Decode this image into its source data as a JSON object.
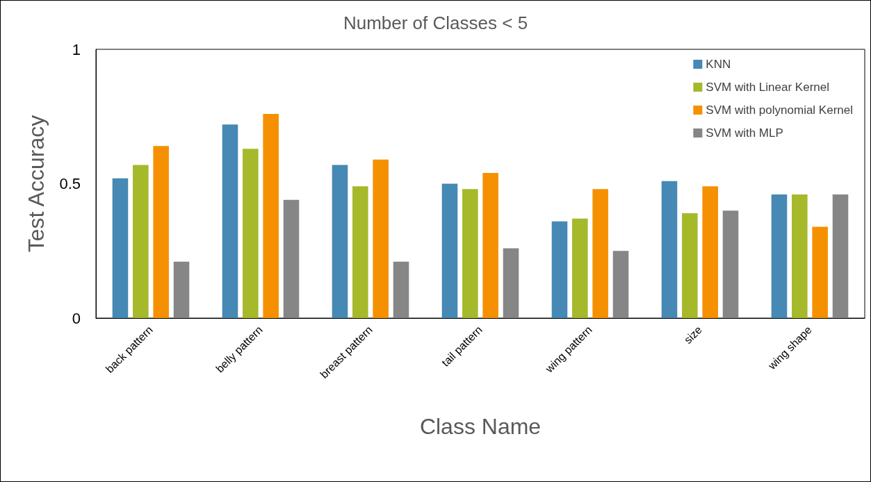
{
  "chart_data": {
    "type": "bar",
    "title": "Number of Classes < 5",
    "xlabel": "Class Name",
    "ylabel": "Test Accuracy",
    "categories": [
      "back pattern",
      "belly pattern",
      "breast pattern",
      "tail pattern",
      "wing pattern",
      "size",
      "wing shape"
    ],
    "series": [
      {
        "name": "KNN",
        "color": "#4589b4",
        "values": [
          0.52,
          0.72,
          0.57,
          0.5,
          0.36,
          0.51,
          0.46
        ]
      },
      {
        "name": "SVM with Linear Kernel",
        "color": "#a5b92a",
        "values": [
          0.57,
          0.63,
          0.49,
          0.48,
          0.37,
          0.39,
          0.46
        ]
      },
      {
        "name": "SVM with polynomial Kernel",
        "color": "#f59100",
        "values": [
          0.64,
          0.76,
          0.59,
          0.54,
          0.48,
          0.49,
          0.34
        ]
      },
      {
        "name": "SVM with MLP",
        "color": "#868686",
        "values": [
          0.21,
          0.44,
          0.21,
          0.26,
          0.25,
          0.4,
          0.46
        ]
      }
    ],
    "ylim": [
      0,
      1
    ],
    "yticks": [
      0,
      0.5,
      1
    ],
    "grid": false,
    "legend": "top right"
  }
}
